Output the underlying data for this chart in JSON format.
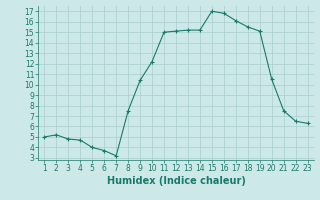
{
  "x": [
    1,
    2,
    3,
    4,
    5,
    6,
    7,
    8,
    9,
    10,
    11,
    12,
    13,
    14,
    15,
    16,
    17,
    18,
    19,
    20,
    21,
    22,
    23
  ],
  "y": [
    5.0,
    5.2,
    4.8,
    4.7,
    4.0,
    3.7,
    3.2,
    7.5,
    10.4,
    12.2,
    15.0,
    15.1,
    15.2,
    15.2,
    17.0,
    16.8,
    16.1,
    15.5,
    15.1,
    10.5,
    7.5,
    6.5,
    6.3
  ],
  "line_color": "#1a7a6a",
  "marker": "+",
  "marker_color": "#1a7a6a",
  "bg_color": "#cce8e8",
  "grid_color": "#aacece",
  "xlabel": "Humidex (Indice chaleur)",
  "xlim": [
    0.5,
    23.5
  ],
  "ylim": [
    2.8,
    17.5
  ],
  "yticks": [
    3,
    4,
    5,
    6,
    7,
    8,
    9,
    10,
    11,
    12,
    13,
    14,
    15,
    16,
    17
  ],
  "xticks": [
    1,
    2,
    3,
    4,
    5,
    6,
    7,
    8,
    9,
    10,
    11,
    12,
    13,
    14,
    15,
    16,
    17,
    18,
    19,
    20,
    21,
    22,
    23
  ],
  "tick_label_fontsize": 5.5,
  "xlabel_fontsize": 7
}
